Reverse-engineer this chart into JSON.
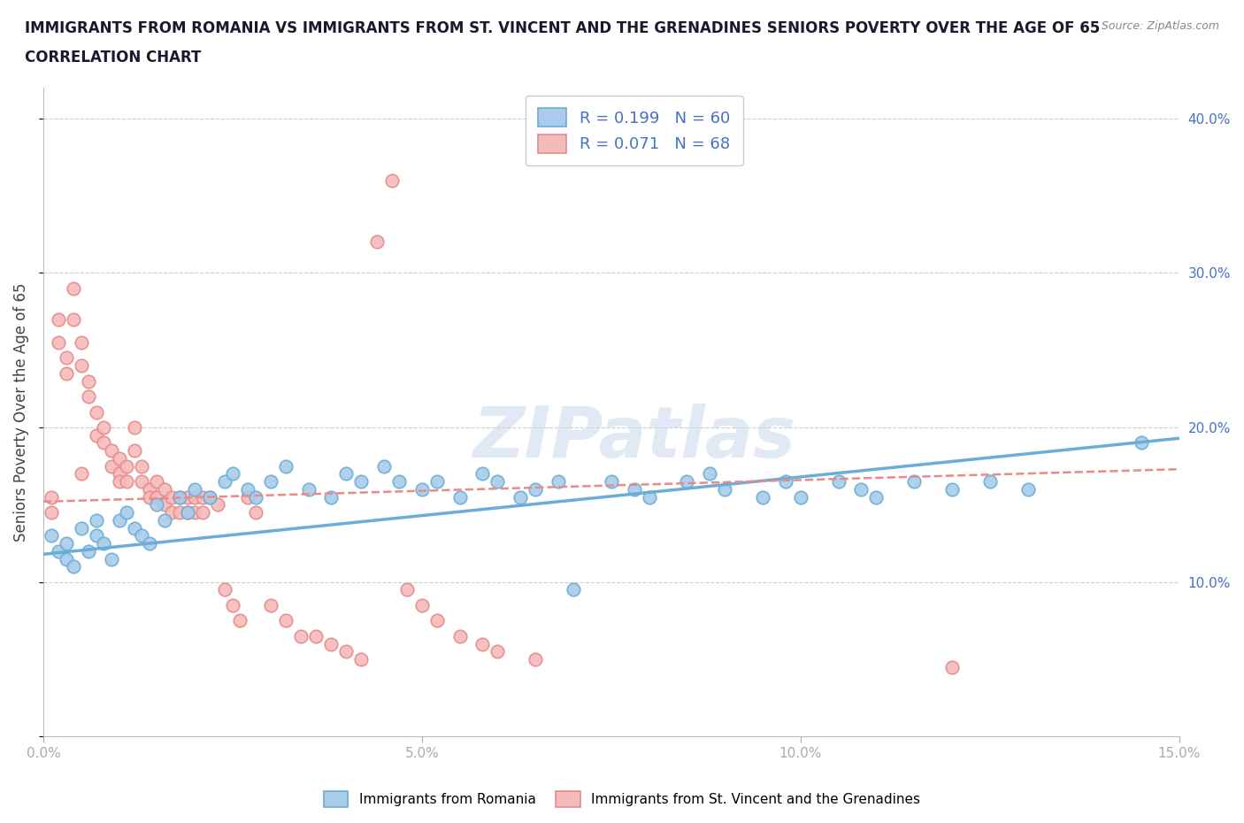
{
  "title_line1": "IMMIGRANTS FROM ROMANIA VS IMMIGRANTS FROM ST. VINCENT AND THE GRENADINES SENIORS POVERTY OVER THE AGE OF 65",
  "title_line2": "CORRELATION CHART",
  "source_text": "Source: ZipAtlas.com",
  "ylabel": "Seniors Poverty Over the Age of 65",
  "xlim": [
    0.0,
    0.15
  ],
  "ylim": [
    0.0,
    0.42
  ],
  "xticks": [
    0.0,
    0.05,
    0.1,
    0.15
  ],
  "xtick_labels": [
    "0.0%",
    "5.0%",
    "10.0%",
    "15.0%"
  ],
  "yticks": [
    0.0,
    0.1,
    0.2,
    0.3,
    0.4
  ],
  "ytick_labels": [
    "",
    "10.0%",
    "20.0%",
    "30.0%",
    "40.0%"
  ],
  "romania_color": "#A8CCEA",
  "romania_edge": "#6BADD6",
  "svg_color": "#F4BBBB",
  "svg_edge": "#E88A8A",
  "romania_R": 0.199,
  "romania_N": 60,
  "svg_R": 0.071,
  "svg_N": 68,
  "legend_label1": "Immigrants from Romania",
  "legend_label2": "Immigrants from St. Vincent and the Grenadines",
  "romania_x": [
    0.001,
    0.002,
    0.003,
    0.003,
    0.004,
    0.005,
    0.006,
    0.007,
    0.007,
    0.008,
    0.009,
    0.01,
    0.011,
    0.012,
    0.013,
    0.014,
    0.015,
    0.016,
    0.018,
    0.019,
    0.02,
    0.022,
    0.024,
    0.025,
    0.027,
    0.028,
    0.03,
    0.032,
    0.035,
    0.038,
    0.04,
    0.042,
    0.045,
    0.047,
    0.05,
    0.052,
    0.055,
    0.058,
    0.06,
    0.063,
    0.065,
    0.068,
    0.07,
    0.075,
    0.078,
    0.08,
    0.085,
    0.088,
    0.09,
    0.095,
    0.098,
    0.1,
    0.105,
    0.108,
    0.11,
    0.115,
    0.12,
    0.125,
    0.13,
    0.145
  ],
  "romania_y": [
    0.13,
    0.12,
    0.125,
    0.115,
    0.11,
    0.135,
    0.12,
    0.14,
    0.13,
    0.125,
    0.115,
    0.14,
    0.145,
    0.135,
    0.13,
    0.125,
    0.15,
    0.14,
    0.155,
    0.145,
    0.16,
    0.155,
    0.165,
    0.17,
    0.16,
    0.155,
    0.165,
    0.175,
    0.16,
    0.155,
    0.17,
    0.165,
    0.175,
    0.165,
    0.16,
    0.165,
    0.155,
    0.17,
    0.165,
    0.155,
    0.16,
    0.165,
    0.095,
    0.165,
    0.16,
    0.155,
    0.165,
    0.17,
    0.16,
    0.155,
    0.165,
    0.155,
    0.165,
    0.16,
    0.155,
    0.165,
    0.16,
    0.165,
    0.16,
    0.19
  ],
  "svg_x": [
    0.001,
    0.001,
    0.002,
    0.002,
    0.003,
    0.003,
    0.004,
    0.004,
    0.005,
    0.005,
    0.005,
    0.006,
    0.006,
    0.007,
    0.007,
    0.008,
    0.008,
    0.009,
    0.009,
    0.01,
    0.01,
    0.01,
    0.011,
    0.011,
    0.012,
    0.012,
    0.013,
    0.013,
    0.014,
    0.014,
    0.015,
    0.015,
    0.016,
    0.016,
    0.017,
    0.017,
    0.018,
    0.018,
    0.019,
    0.019,
    0.02,
    0.02,
    0.021,
    0.021,
    0.022,
    0.023,
    0.024,
    0.025,
    0.026,
    0.027,
    0.028,
    0.03,
    0.032,
    0.034,
    0.036,
    0.038,
    0.04,
    0.042,
    0.044,
    0.046,
    0.048,
    0.05,
    0.052,
    0.055,
    0.058,
    0.06,
    0.065,
    0.12
  ],
  "svg_y": [
    0.155,
    0.145,
    0.27,
    0.255,
    0.245,
    0.235,
    0.29,
    0.27,
    0.255,
    0.24,
    0.17,
    0.23,
    0.22,
    0.195,
    0.21,
    0.2,
    0.19,
    0.185,
    0.175,
    0.18,
    0.17,
    0.165,
    0.175,
    0.165,
    0.2,
    0.185,
    0.175,
    0.165,
    0.16,
    0.155,
    0.165,
    0.155,
    0.16,
    0.15,
    0.155,
    0.145,
    0.155,
    0.145,
    0.155,
    0.145,
    0.155,
    0.145,
    0.155,
    0.145,
    0.155,
    0.15,
    0.095,
    0.085,
    0.075,
    0.155,
    0.145,
    0.085,
    0.075,
    0.065,
    0.065,
    0.06,
    0.055,
    0.05,
    0.32,
    0.36,
    0.095,
    0.085,
    0.075,
    0.065,
    0.06,
    0.055,
    0.05,
    0.045
  ],
  "romania_trend_x": [
    0.0,
    0.15
  ],
  "romania_trend_y": [
    0.118,
    0.193
  ],
  "svg_trend_x": [
    0.0,
    0.15
  ],
  "svg_trend_y": [
    0.152,
    0.173
  ]
}
